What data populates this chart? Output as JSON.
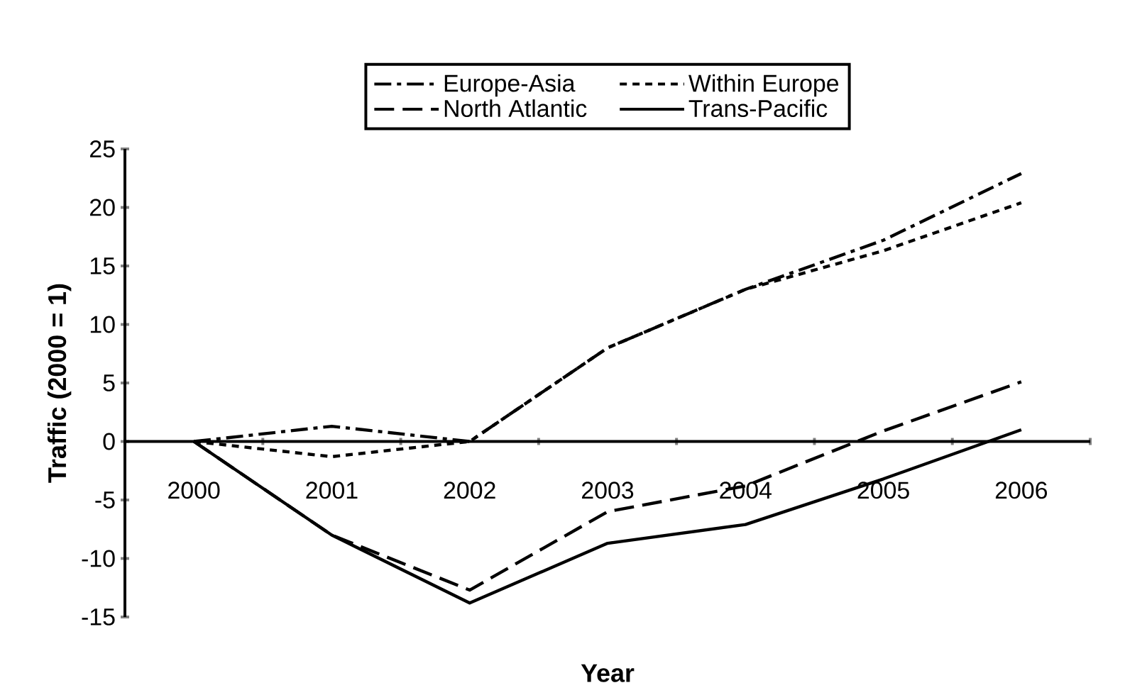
{
  "chart_data": {
    "type": "line",
    "xlabel": "Year",
    "ylabel": "Traffic (2000 = 1)",
    "categories": [
      "2000",
      "2001",
      "2002",
      "2003",
      "2004",
      "2005",
      "2006"
    ],
    "series": [
      {
        "name": "Europe-Asia",
        "color": "#000000",
        "line_style": "dashdot",
        "values": [
          0,
          1.3,
          0,
          8,
          13,
          17.2,
          22.9
        ]
      },
      {
        "name": "Within Europe",
        "color": "#000000",
        "line_style": "dotted",
        "values": [
          0,
          -1.3,
          0,
          8,
          13,
          16.3,
          20.4
        ]
      },
      {
        "name": "North Atlantic",
        "color": "#000000",
        "line_style": "dashed",
        "values": [
          0,
          -8,
          -12.7,
          -6,
          -3.8,
          0.9,
          5.1
        ]
      },
      {
        "name": "Trans-Pacific",
        "color": "#000000",
        "line_style": "solid",
        "values": [
          0,
          -8,
          -13.8,
          -8.7,
          -7.1,
          -3.2,
          1
        ]
      }
    ],
    "ylim": [
      -15,
      25
    ],
    "yticks": [
      -15,
      -10,
      -5,
      0,
      5,
      10,
      15,
      20,
      25
    ],
    "legend": "top",
    "grid": false,
    "marker": "none"
  }
}
